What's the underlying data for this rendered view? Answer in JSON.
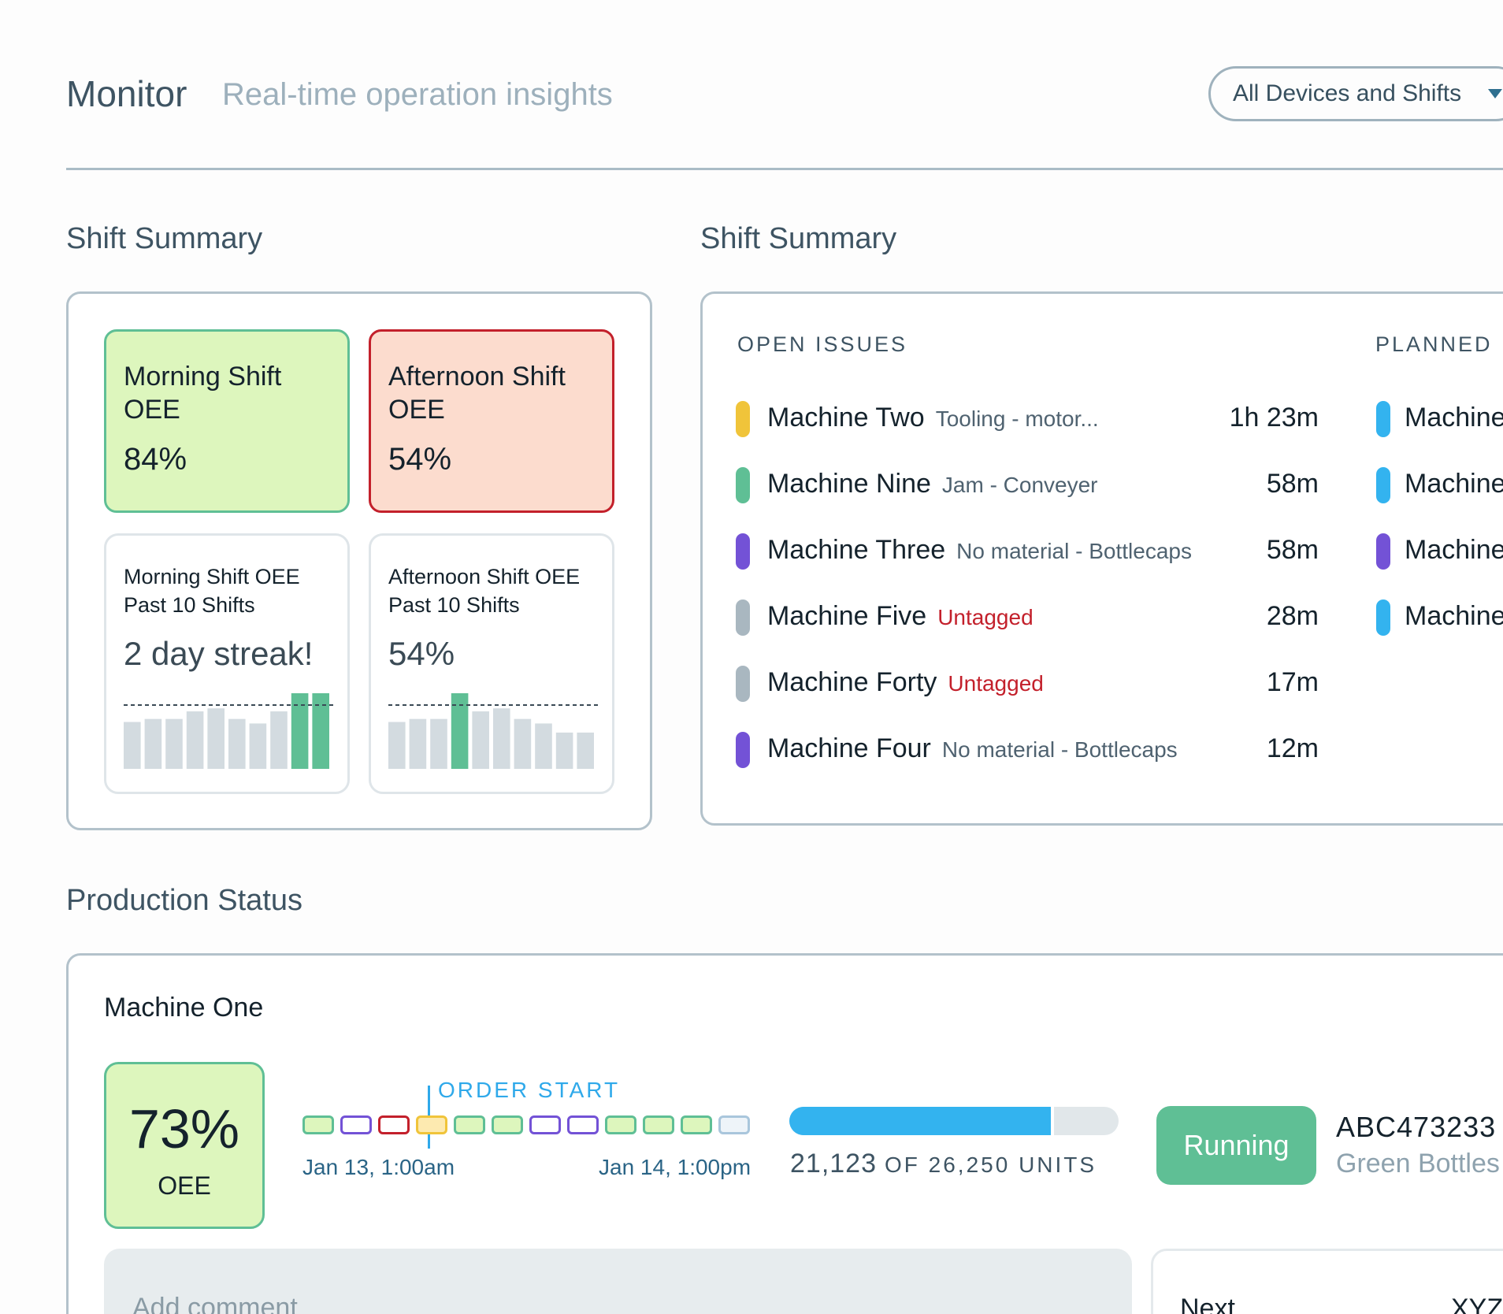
{
  "header": {
    "title": "Monitor",
    "subtitle": "Real-time operation insights",
    "filter_value": "All Devices and Shifts",
    "filter_icon": "chevron-down-icon"
  },
  "shift_summary_left": {
    "title": "Shift Summary",
    "cards": [
      {
        "title": "Morning Shift OEE",
        "value": "84%",
        "status": "good",
        "color": "#ddf6bd",
        "border": "#5fbf95"
      },
      {
        "title": "Afternoon Shift OEE",
        "value": "54%",
        "status": "bad",
        "color": "#fcdcce",
        "border": "#c3202b"
      }
    ],
    "history": [
      {
        "title": "Morning Shift OEE Past 10 Shifts",
        "value": "2 day streak!",
        "bars": [
          0.62,
          0.66,
          0.66,
          0.76,
          0.8,
          0.66,
          0.6,
          0.76,
          1.0,
          1.0
        ],
        "highlight": [
          8,
          9
        ]
      },
      {
        "title": "Afternoon Shift OEE Past 10 Shifts",
        "value": "54%",
        "bars": [
          0.62,
          0.66,
          0.66,
          1.0,
          0.76,
          0.8,
          0.66,
          0.6,
          0.48,
          0.48
        ],
        "highlight": [
          3
        ]
      }
    ]
  },
  "shift_summary_right": {
    "title": "Shift Summary",
    "open_issues_label": "OPEN ISSUES",
    "planned_label": "PLANNED",
    "issues": [
      {
        "machine": "Machine Two",
        "reason": "Tooling - motor...",
        "duration": "1h 23m",
        "color": "#f0c43a",
        "untagged": false
      },
      {
        "machine": "Machine Nine",
        "reason": "Jam -  Conveyer",
        "duration": "58m",
        "color": "#5fbf95",
        "untagged": false
      },
      {
        "machine": "Machine Three",
        "reason": "No material - Bottlecaps",
        "duration": "58m",
        "color": "#7352d6",
        "untagged": false
      },
      {
        "machine": "Machine Five",
        "reason": "Untagged",
        "duration": "28m",
        "color": "#a9b7c0",
        "untagged": true
      },
      {
        "machine": "Machine Forty",
        "reason": "Untagged",
        "duration": "17m",
        "color": "#a9b7c0",
        "untagged": true
      },
      {
        "machine": "Machine Four",
        "reason": "No material - Bottlecaps",
        "duration": "12m",
        "color": "#7352d6",
        "untagged": false
      }
    ],
    "planned": [
      {
        "machine": "Machine",
        "color": "#33b3ef"
      },
      {
        "machine": "Machine",
        "color": "#33b3ef"
      },
      {
        "machine": "Machine",
        "color": "#7352d6"
      },
      {
        "machine": "Machine",
        "color": "#33b3ef"
      }
    ]
  },
  "production": {
    "title": "Production Status",
    "machine_name": "Machine One",
    "oee_value": "73%",
    "oee_label": "OEE",
    "order_start_label": "ORDER START",
    "timeline": [
      {
        "state": "running",
        "stroke": "#5fbf95",
        "fill": "#ddf6bd"
      },
      {
        "state": "planned",
        "stroke": "#7352d6",
        "fill": "#ffffff"
      },
      {
        "state": "down",
        "stroke": "#c3202b",
        "fill": "#ffffff"
      },
      {
        "state": "warning",
        "stroke": "#f0c43a",
        "fill": "#fdeab0"
      },
      {
        "state": "running",
        "stroke": "#5fbf95",
        "fill": "#ddf6bd"
      },
      {
        "state": "running",
        "stroke": "#5fbf95",
        "fill": "#ddf6bd"
      },
      {
        "state": "planned",
        "stroke": "#7352d6",
        "fill": "#ffffff"
      },
      {
        "state": "planned",
        "stroke": "#7352d6",
        "fill": "#ffffff"
      },
      {
        "state": "running",
        "stroke": "#5fbf95",
        "fill": "#ddf6bd"
      },
      {
        "state": "running",
        "stroke": "#5fbf95",
        "fill": "#ddf6bd"
      },
      {
        "state": "running",
        "stroke": "#5fbf95",
        "fill": "#ddf6bd"
      },
      {
        "state": "idle",
        "stroke": "#a9c6dc",
        "fill": "#eef4f9"
      }
    ],
    "date_start": "Jan 13, 1:00am",
    "date_end": "Jan 14, 1:00pm",
    "units_done": "21,123",
    "units_total_label": "OF 26,250 UNITS",
    "progress": 0.805,
    "status": "Running",
    "status_color": "#5fbf95",
    "order_id": "ABC473233",
    "product": "Green Bottles",
    "comment_placeholder": "Add comment",
    "next_label": "Next",
    "next_id": "XYZ"
  }
}
